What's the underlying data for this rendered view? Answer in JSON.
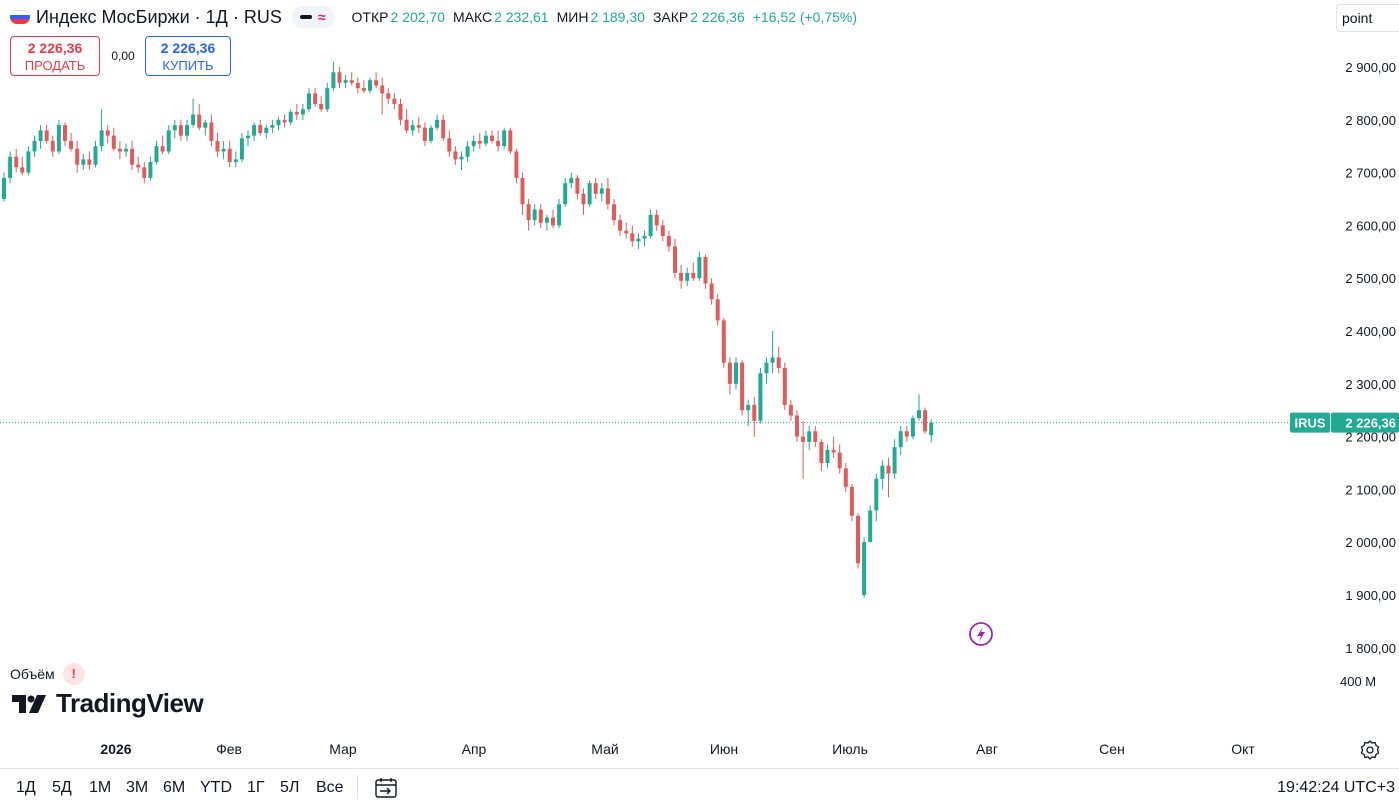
{
  "header": {
    "symbol_title": "Индекс МосБиржи · 1Д · RUS",
    "open_label": "ОТКР",
    "open_value": "2 202,70",
    "high_label": "МАКС",
    "high_value": "2 232,61",
    "low_label": "МИН",
    "low_value": "2 189,30",
    "close_label": "ЗАКР",
    "close_value": "2 226,36",
    "change": "+16,52 (+0,75%)"
  },
  "trade": {
    "sell_price": "2 226,36",
    "sell_label": "ПРОДАТЬ",
    "spread": "0,00",
    "buy_price": "2 226,36",
    "buy_label": "КУПИТЬ"
  },
  "unit_selector": "point",
  "price_badge": {
    "ticker": "IRUS",
    "value": "2 226,36"
  },
  "volume": {
    "label": "Объём",
    "warning": "!",
    "axis_tick": "400 M"
  },
  "logo_text": "TradingView",
  "ranges": [
    "1Д",
    "5Д",
    "1М",
    "3М",
    "6М",
    "YTD",
    "1Г",
    "5Л",
    "Все"
  ],
  "clock": "19:42:24 UTC+3",
  "colors": {
    "up": "#22ab94",
    "down": "#e15b5b",
    "badge": "#22ab94",
    "accent": "#2962ff",
    "event": "#9c27b0"
  },
  "icons": {
    "calendar": "calendar-range-icon",
    "settings": "settings-gear-icon",
    "event": "lightning-event-icon"
  },
  "chart_data": {
    "type": "candlestick",
    "ylim": [
      1800,
      2950
    ],
    "y_ticks": [
      "2 900,00",
      "2 800,00",
      "2 700,00",
      "2 600,00",
      "2 500,00",
      "2 400,00",
      "2 300,00",
      "2 200,00",
      "2 100,00",
      "2 000,00",
      "1 900,00",
      "1 800,00"
    ],
    "x_tick_labels": [
      "2026",
      "Фев",
      "Мар",
      "Апр",
      "Май",
      "Июн",
      "Июль",
      "Авг",
      "Сен",
      "Окт"
    ],
    "last_price": 2226.36,
    "candles": [
      {
        "o": 2650,
        "h": 2700,
        "l": 2645,
        "c": 2690
      },
      {
        "o": 2690,
        "h": 2740,
        "l": 2680,
        "c": 2730
      },
      {
        "o": 2730,
        "h": 2745,
        "l": 2700,
        "c": 2710
      },
      {
        "o": 2710,
        "h": 2730,
        "l": 2695,
        "c": 2700
      },
      {
        "o": 2700,
        "h": 2750,
        "l": 2695,
        "c": 2740
      },
      {
        "o": 2740,
        "h": 2770,
        "l": 2730,
        "c": 2760
      },
      {
        "o": 2760,
        "h": 2790,
        "l": 2745,
        "c": 2780
      },
      {
        "o": 2780,
        "h": 2790,
        "l": 2755,
        "c": 2760
      },
      {
        "o": 2760,
        "h": 2770,
        "l": 2730,
        "c": 2740
      },
      {
        "o": 2740,
        "h": 2800,
        "l": 2735,
        "c": 2790
      },
      {
        "o": 2790,
        "h": 2795,
        "l": 2750,
        "c": 2760
      },
      {
        "o": 2760,
        "h": 2775,
        "l": 2740,
        "c": 2745
      },
      {
        "o": 2745,
        "h": 2760,
        "l": 2700,
        "c": 2715
      },
      {
        "o": 2715,
        "h": 2735,
        "l": 2705,
        "c": 2725
      },
      {
        "o": 2725,
        "h": 2740,
        "l": 2705,
        "c": 2715
      },
      {
        "o": 2715,
        "h": 2760,
        "l": 2710,
        "c": 2750
      },
      {
        "o": 2750,
        "h": 2820,
        "l": 2740,
        "c": 2780
      },
      {
        "o": 2780,
        "h": 2790,
        "l": 2755,
        "c": 2770
      },
      {
        "o": 2770,
        "h": 2785,
        "l": 2740,
        "c": 2745
      },
      {
        "o": 2745,
        "h": 2760,
        "l": 2725,
        "c": 2740
      },
      {
        "o": 2740,
        "h": 2755,
        "l": 2730,
        "c": 2745
      },
      {
        "o": 2745,
        "h": 2760,
        "l": 2705,
        "c": 2715
      },
      {
        "o": 2715,
        "h": 2730,
        "l": 2700,
        "c": 2710
      },
      {
        "o": 2710,
        "h": 2720,
        "l": 2680,
        "c": 2690
      },
      {
        "o": 2690,
        "h": 2730,
        "l": 2685,
        "c": 2720
      },
      {
        "o": 2720,
        "h": 2760,
        "l": 2715,
        "c": 2750
      },
      {
        "o": 2750,
        "h": 2770,
        "l": 2735,
        "c": 2740
      },
      {
        "o": 2740,
        "h": 2790,
        "l": 2735,
        "c": 2780
      },
      {
        "o": 2780,
        "h": 2800,
        "l": 2765,
        "c": 2790
      },
      {
        "o": 2790,
        "h": 2800,
        "l": 2760,
        "c": 2770
      },
      {
        "o": 2770,
        "h": 2800,
        "l": 2760,
        "c": 2790
      },
      {
        "o": 2790,
        "h": 2840,
        "l": 2785,
        "c": 2810
      },
      {
        "o": 2810,
        "h": 2830,
        "l": 2780,
        "c": 2785
      },
      {
        "o": 2785,
        "h": 2800,
        "l": 2770,
        "c": 2795
      },
      {
        "o": 2795,
        "h": 2810,
        "l": 2750,
        "c": 2760
      },
      {
        "o": 2760,
        "h": 2775,
        "l": 2730,
        "c": 2740
      },
      {
        "o": 2740,
        "h": 2760,
        "l": 2725,
        "c": 2745
      },
      {
        "o": 2745,
        "h": 2760,
        "l": 2710,
        "c": 2720
      },
      {
        "o": 2720,
        "h": 2740,
        "l": 2710,
        "c": 2725
      },
      {
        "o": 2725,
        "h": 2775,
        "l": 2720,
        "c": 2765
      },
      {
        "o": 2765,
        "h": 2780,
        "l": 2750,
        "c": 2770
      },
      {
        "o": 2770,
        "h": 2795,
        "l": 2760,
        "c": 2790
      },
      {
        "o": 2790,
        "h": 2800,
        "l": 2770,
        "c": 2775
      },
      {
        "o": 2775,
        "h": 2790,
        "l": 2765,
        "c": 2785
      },
      {
        "o": 2785,
        "h": 2800,
        "l": 2775,
        "c": 2790
      },
      {
        "o": 2790,
        "h": 2805,
        "l": 2780,
        "c": 2800
      },
      {
        "o": 2800,
        "h": 2810,
        "l": 2785,
        "c": 2795
      },
      {
        "o": 2795,
        "h": 2820,
        "l": 2790,
        "c": 2815
      },
      {
        "o": 2815,
        "h": 2830,
        "l": 2800,
        "c": 2810
      },
      {
        "o": 2810,
        "h": 2830,
        "l": 2800,
        "c": 2820
      },
      {
        "o": 2820,
        "h": 2860,
        "l": 2815,
        "c": 2850
      },
      {
        "o": 2850,
        "h": 2860,
        "l": 2825,
        "c": 2830
      },
      {
        "o": 2830,
        "h": 2845,
        "l": 2815,
        "c": 2820
      },
      {
        "o": 2820,
        "h": 2870,
        "l": 2815,
        "c": 2860
      },
      {
        "o": 2860,
        "h": 2910,
        "l": 2855,
        "c": 2890
      },
      {
        "o": 2890,
        "h": 2900,
        "l": 2860,
        "c": 2870
      },
      {
        "o": 2870,
        "h": 2885,
        "l": 2860,
        "c": 2875
      },
      {
        "o": 2875,
        "h": 2890,
        "l": 2865,
        "c": 2870
      },
      {
        "o": 2870,
        "h": 2880,
        "l": 2850,
        "c": 2860
      },
      {
        "o": 2860,
        "h": 2875,
        "l": 2850,
        "c": 2855
      },
      {
        "o": 2855,
        "h": 2880,
        "l": 2850,
        "c": 2875
      },
      {
        "o": 2875,
        "h": 2890,
        "l": 2860,
        "c": 2865
      },
      {
        "o": 2865,
        "h": 2880,
        "l": 2810,
        "c": 2850
      },
      {
        "o": 2850,
        "h": 2860,
        "l": 2830,
        "c": 2840
      },
      {
        "o": 2840,
        "h": 2850,
        "l": 2820,
        "c": 2830
      },
      {
        "o": 2830,
        "h": 2840,
        "l": 2790,
        "c": 2800
      },
      {
        "o": 2800,
        "h": 2820,
        "l": 2775,
        "c": 2780
      },
      {
        "o": 2780,
        "h": 2800,
        "l": 2770,
        "c": 2790
      },
      {
        "o": 2790,
        "h": 2805,
        "l": 2775,
        "c": 2785
      },
      {
        "o": 2785,
        "h": 2795,
        "l": 2750,
        "c": 2760
      },
      {
        "o": 2760,
        "h": 2790,
        "l": 2755,
        "c": 2785
      },
      {
        "o": 2785,
        "h": 2810,
        "l": 2780,
        "c": 2800
      },
      {
        "o": 2800,
        "h": 2810,
        "l": 2760,
        "c": 2765
      },
      {
        "o": 2765,
        "h": 2780,
        "l": 2730,
        "c": 2740
      },
      {
        "o": 2740,
        "h": 2750,
        "l": 2715,
        "c": 2725
      },
      {
        "o": 2725,
        "h": 2740,
        "l": 2705,
        "c": 2730
      },
      {
        "o": 2730,
        "h": 2760,
        "l": 2720,
        "c": 2750
      },
      {
        "o": 2750,
        "h": 2770,
        "l": 2740,
        "c": 2760
      },
      {
        "o": 2760,
        "h": 2775,
        "l": 2745,
        "c": 2755
      },
      {
        "o": 2755,
        "h": 2780,
        "l": 2750,
        "c": 2770
      },
      {
        "o": 2770,
        "h": 2780,
        "l": 2755,
        "c": 2760
      },
      {
        "o": 2760,
        "h": 2780,
        "l": 2740,
        "c": 2750
      },
      {
        "o": 2750,
        "h": 2785,
        "l": 2745,
        "c": 2780
      },
      {
        "o": 2780,
        "h": 2785,
        "l": 2735,
        "c": 2740
      },
      {
        "o": 2740,
        "h": 2745,
        "l": 2680,
        "c": 2690
      },
      {
        "o": 2690,
        "h": 2700,
        "l": 2620,
        "c": 2640
      },
      {
        "o": 2640,
        "h": 2650,
        "l": 2590,
        "c": 2610
      },
      {
        "o": 2610,
        "h": 2640,
        "l": 2600,
        "c": 2630
      },
      {
        "o": 2630,
        "h": 2640,
        "l": 2595,
        "c": 2605
      },
      {
        "o": 2605,
        "h": 2620,
        "l": 2590,
        "c": 2615
      },
      {
        "o": 2615,
        "h": 2630,
        "l": 2595,
        "c": 2600
      },
      {
        "o": 2600,
        "h": 2650,
        "l": 2595,
        "c": 2640
      },
      {
        "o": 2640,
        "h": 2690,
        "l": 2635,
        "c": 2680
      },
      {
        "o": 2680,
        "h": 2700,
        "l": 2670,
        "c": 2690
      },
      {
        "o": 2690,
        "h": 2695,
        "l": 2650,
        "c": 2660
      },
      {
        "o": 2660,
        "h": 2670,
        "l": 2620,
        "c": 2640
      },
      {
        "o": 2640,
        "h": 2685,
        "l": 2635,
        "c": 2680
      },
      {
        "o": 2680,
        "h": 2690,
        "l": 2650,
        "c": 2660
      },
      {
        "o": 2660,
        "h": 2680,
        "l": 2645,
        "c": 2670
      },
      {
        "o": 2670,
        "h": 2690,
        "l": 2630,
        "c": 2640
      },
      {
        "o": 2640,
        "h": 2650,
        "l": 2600,
        "c": 2610
      },
      {
        "o": 2610,
        "h": 2620,
        "l": 2580,
        "c": 2590
      },
      {
        "o": 2590,
        "h": 2605,
        "l": 2575,
        "c": 2585
      },
      {
        "o": 2585,
        "h": 2600,
        "l": 2560,
        "c": 2570
      },
      {
        "o": 2570,
        "h": 2585,
        "l": 2555,
        "c": 2575
      },
      {
        "o": 2575,
        "h": 2590,
        "l": 2560,
        "c": 2580
      },
      {
        "o": 2580,
        "h": 2630,
        "l": 2575,
        "c": 2620
      },
      {
        "o": 2620,
        "h": 2630,
        "l": 2590,
        "c": 2600
      },
      {
        "o": 2600,
        "h": 2610,
        "l": 2570,
        "c": 2580
      },
      {
        "o": 2580,
        "h": 2590,
        "l": 2550,
        "c": 2560
      },
      {
        "o": 2560,
        "h": 2575,
        "l": 2500,
        "c": 2510
      },
      {
        "o": 2510,
        "h": 2525,
        "l": 2480,
        "c": 2495
      },
      {
        "o": 2495,
        "h": 2520,
        "l": 2485,
        "c": 2510
      },
      {
        "o": 2510,
        "h": 2530,
        "l": 2495,
        "c": 2500
      },
      {
        "o": 2500,
        "h": 2550,
        "l": 2495,
        "c": 2540
      },
      {
        "o": 2540,
        "h": 2545,
        "l": 2480,
        "c": 2490
      },
      {
        "o": 2490,
        "h": 2500,
        "l": 2450,
        "c": 2460
      },
      {
        "o": 2460,
        "h": 2470,
        "l": 2410,
        "c": 2420
      },
      {
        "o": 2420,
        "h": 2425,
        "l": 2330,
        "c": 2340
      },
      {
        "o": 2340,
        "h": 2350,
        "l": 2280,
        "c": 2300
      },
      {
        "o": 2300,
        "h": 2350,
        "l": 2290,
        "c": 2340
      },
      {
        "o": 2340,
        "h": 2345,
        "l": 2240,
        "c": 2250
      },
      {
        "o": 2250,
        "h": 2270,
        "l": 2220,
        "c": 2260
      },
      {
        "o": 2260,
        "h": 2275,
        "l": 2200,
        "c": 2230
      },
      {
        "o": 2230,
        "h": 2330,
        "l": 2225,
        "c": 2320
      },
      {
        "o": 2320,
        "h": 2350,
        "l": 2300,
        "c": 2340
      },
      {
        "o": 2340,
        "h": 2400,
        "l": 2320,
        "c": 2350
      },
      {
        "o": 2350,
        "h": 2370,
        "l": 2320,
        "c": 2330
      },
      {
        "o": 2330,
        "h": 2340,
        "l": 2250,
        "c": 2260
      },
      {
        "o": 2260,
        "h": 2270,
        "l": 2230,
        "c": 2240
      },
      {
        "o": 2240,
        "h": 2250,
        "l": 2190,
        "c": 2200
      },
      {
        "o": 2200,
        "h": 2230,
        "l": 2120,
        "c": 2190
      },
      {
        "o": 2190,
        "h": 2220,
        "l": 2175,
        "c": 2210
      },
      {
        "o": 2210,
        "h": 2220,
        "l": 2180,
        "c": 2190
      },
      {
        "o": 2190,
        "h": 2195,
        "l": 2135,
        "c": 2150
      },
      {
        "o": 2150,
        "h": 2185,
        "l": 2140,
        "c": 2175
      },
      {
        "o": 2175,
        "h": 2200,
        "l": 2160,
        "c": 2170
      },
      {
        "o": 2170,
        "h": 2185,
        "l": 2130,
        "c": 2140
      },
      {
        "o": 2140,
        "h": 2150,
        "l": 2095,
        "c": 2105
      },
      {
        "o": 2105,
        "h": 2110,
        "l": 2040,
        "c": 2050
      },
      {
        "o": 2050,
        "h": 2055,
        "l": 1950,
        "c": 1960
      },
      {
        "o": 1900,
        "h": 2010,
        "l": 1895,
        "c": 2000
      },
      {
        "o": 2000,
        "h": 2070,
        "l": 2005,
        "c": 2060
      },
      {
        "o": 2060,
        "h": 2130,
        "l": 2040,
        "c": 2120
      },
      {
        "o": 2120,
        "h": 2155,
        "l": 2100,
        "c": 2145
      },
      {
        "o": 2145,
        "h": 2160,
        "l": 2085,
        "c": 2130
      },
      {
        "o": 2130,
        "h": 2195,
        "l": 2120,
        "c": 2180
      },
      {
        "o": 2180,
        "h": 2220,
        "l": 2165,
        "c": 2210
      },
      {
        "o": 2210,
        "h": 2220,
        "l": 2190,
        "c": 2200
      },
      {
        "o": 2200,
        "h": 2240,
        "l": 2195,
        "c": 2235
      },
      {
        "o": 2235,
        "h": 2280,
        "l": 2230,
        "c": 2250
      },
      {
        "o": 2250,
        "h": 2255,
        "l": 2205,
        "c": 2210
      },
      {
        "o": 2202.7,
        "h": 2232.61,
        "l": 2189.3,
        "c": 2226.36
      }
    ]
  }
}
